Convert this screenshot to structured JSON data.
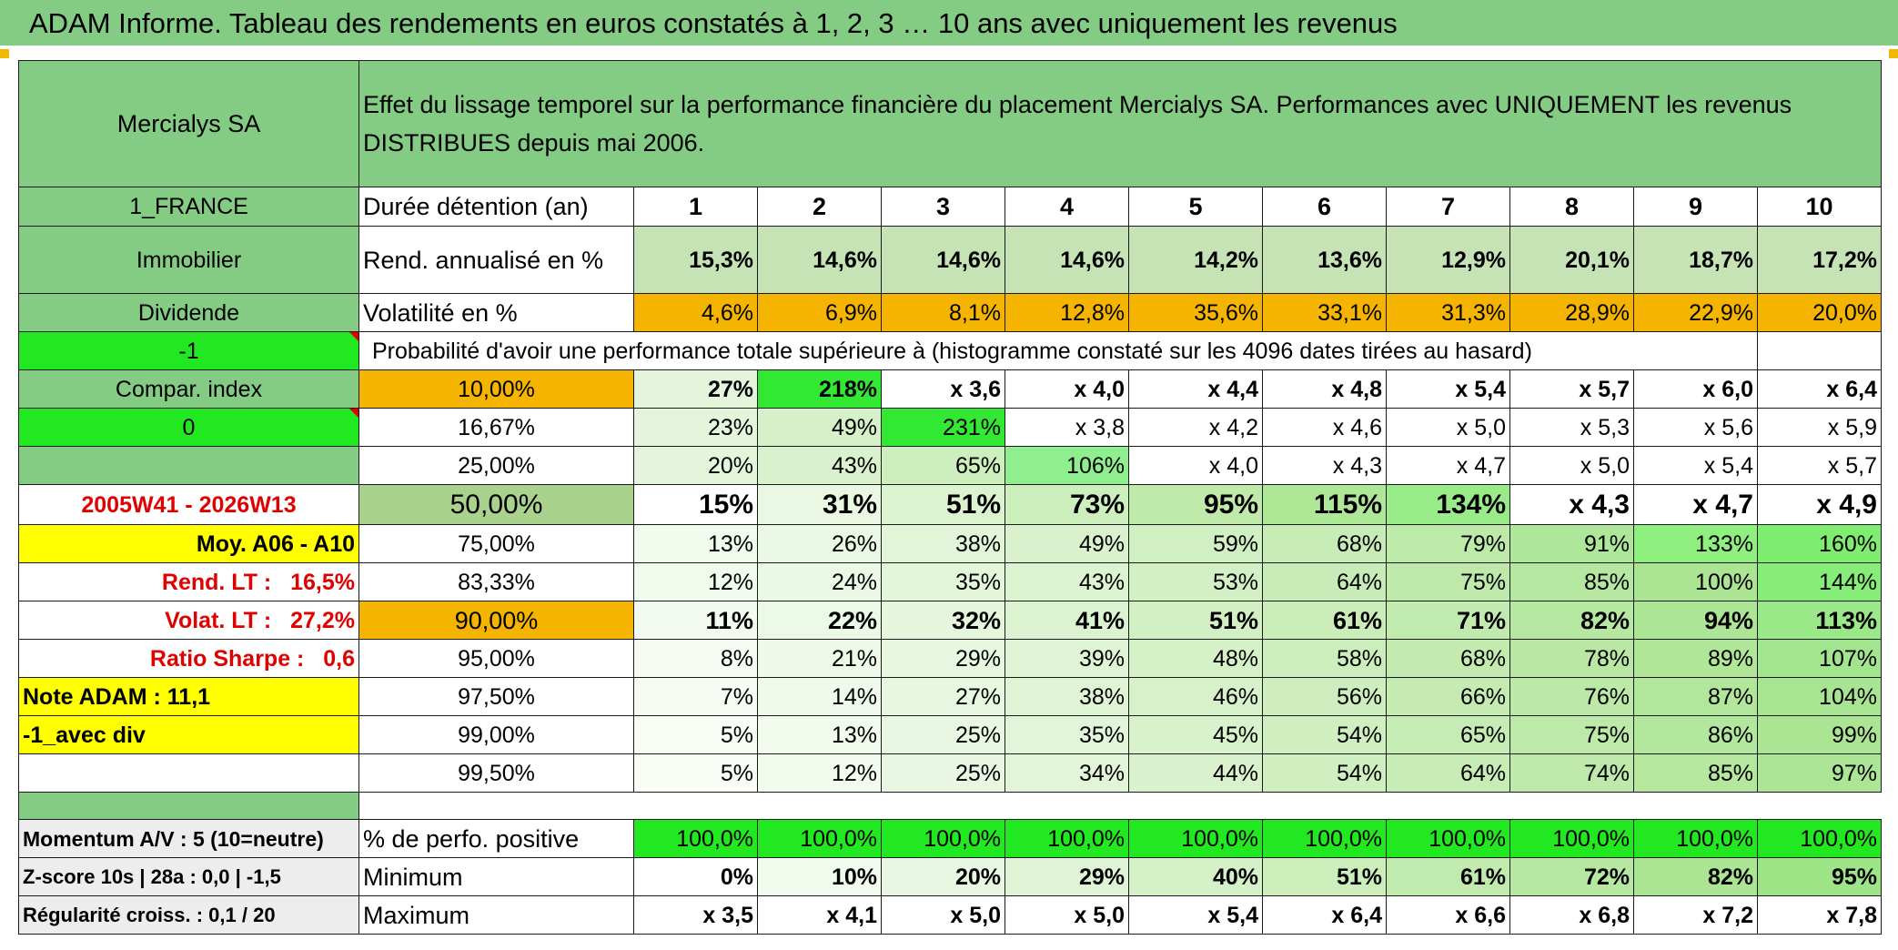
{
  "header": {
    "title": "ADAM Informe. Tableau des rendements en euros constatés à 1, 2, 3 … 10 ans avec uniquement les revenus"
  },
  "table": {
    "company": "Mercialys SA",
    "description": "Effet du lissage temporel sur la performance financière du placement Mercialys SA. Performances avec UNIQUEMENT les revenus DISTRIBUES depuis mai 2006.",
    "left_labels": {
      "country": "1_FRANCE",
      "sector": "Immobilier",
      "income_type": "Dividende",
      "flag_1": "-1",
      "compar_index": "Compar. index",
      "flag_2": "0",
      "period": "2005W41 - 2026W13",
      "avg": "Moy. A06 - A10",
      "rend_lt_label": "Rend. LT :",
      "rend_lt_value": "16,5%",
      "volat_lt_label": "Volat. LT :",
      "volat_lt_value": "27,2%",
      "sharpe_label": "Ratio Sharpe :",
      "sharpe_value": "0,6",
      "note_adam": "Note ADAM : 11,1",
      "avec_div": "-1_avec div",
      "momentum": "Momentum A/V : 5 (10=neutre)",
      "zscore": "Z-score 10s | 28a : 0,0 | -1,5",
      "regularite": "Régularité croiss. : 0,1 / 20"
    },
    "holding_label": "Durée détention (an)",
    "years": [
      "1",
      "2",
      "3",
      "4",
      "5",
      "6",
      "7",
      "8",
      "9",
      "10"
    ],
    "rend_label": "Rend. annualisé en %",
    "rend": [
      "15,3%",
      "14,6%",
      "14,6%",
      "14,6%",
      "14,2%",
      "13,6%",
      "12,9%",
      "20,1%",
      "18,7%",
      "17,2%"
    ],
    "vol_label": "Volatilité en %",
    "vol": [
      "4,6%",
      "6,9%",
      "8,1%",
      "12,8%",
      "35,6%",
      "33,1%",
      "31,3%",
      "28,9%",
      "22,9%",
      "20,0%"
    ],
    "prob_header": "Probabilité d'avoir une performance totale supérieure à (histogramme constaté sur les 4096 dates tirées au hasard)",
    "quantiles": [
      {
        "p": "10,00%",
        "v": [
          "27%",
          "218%",
          "x 3,6",
          "x 4,0",
          "x 4,4",
          "x 4,8",
          "x 5,4",
          "x 5,7",
          "x 6,0",
          "x 6,4"
        ]
      },
      {
        "p": "16,67%",
        "v": [
          "23%",
          "49%",
          "231%",
          "x 3,8",
          "x 4,2",
          "x 4,6",
          "x 5,0",
          "x 5,3",
          "x 5,6",
          "x 5,9"
        ]
      },
      {
        "p": "25,00%",
        "v": [
          "20%",
          "43%",
          "65%",
          "106%",
          "x 4,0",
          "x 4,3",
          "x 4,7",
          "x 5,0",
          "x 5,4",
          "x 5,7"
        ]
      },
      {
        "p": "50,00%",
        "v": [
          "15%",
          "31%",
          "51%",
          "73%",
          "95%",
          "115%",
          "134%",
          "x 4,3",
          "x 4,7",
          "x 4,9"
        ]
      },
      {
        "p": "75,00%",
        "v": [
          "13%",
          "26%",
          "38%",
          "49%",
          "59%",
          "68%",
          "79%",
          "91%",
          "133%",
          "160%"
        ]
      },
      {
        "p": "83,33%",
        "v": [
          "12%",
          "24%",
          "35%",
          "43%",
          "53%",
          "64%",
          "75%",
          "85%",
          "100%",
          "144%"
        ]
      },
      {
        "p": "90,00%",
        "v": [
          "11%",
          "22%",
          "32%",
          "41%",
          "51%",
          "61%",
          "71%",
          "82%",
          "94%",
          "113%"
        ]
      },
      {
        "p": "95,00%",
        "v": [
          "8%",
          "21%",
          "29%",
          "39%",
          "48%",
          "58%",
          "68%",
          "78%",
          "89%",
          "107%"
        ]
      },
      {
        "p": "97,50%",
        "v": [
          "7%",
          "14%",
          "27%",
          "38%",
          "46%",
          "56%",
          "66%",
          "76%",
          "87%",
          "104%"
        ]
      },
      {
        "p": "99,00%",
        "v": [
          "5%",
          "13%",
          "25%",
          "35%",
          "45%",
          "54%",
          "65%",
          "75%",
          "86%",
          "99%"
        ]
      },
      {
        "p": "99,50%",
        "v": [
          "5%",
          "12%",
          "25%",
          "34%",
          "44%",
          "54%",
          "64%",
          "74%",
          "85%",
          "97%"
        ]
      }
    ],
    "positive_label": "% de perfo. positive",
    "positive": [
      "100,0%",
      "100,0%",
      "100,0%",
      "100,0%",
      "100,0%",
      "100,0%",
      "100,0%",
      "100,0%",
      "100,0%",
      "100,0%"
    ],
    "min_label": "Minimum",
    "min": [
      "0%",
      "10%",
      "20%",
      "29%",
      "40%",
      "51%",
      "61%",
      "72%",
      "82%",
      "95%"
    ],
    "max_label": "Maximum",
    "max": [
      "x 3,5",
      "x 4,1",
      "x 5,0",
      "x 5,0",
      "x 5,4",
      "x 6,4",
      "x 6,6",
      "x 6,8",
      "x 7,2",
      "x 7,8"
    ]
  },
  "colors": {
    "header_green": "#84cc84",
    "light_green": "#c6e3b6",
    "orange": "#f5b400",
    "bright_green": "#21e821",
    "yellow": "#ffff00",
    "label_red": "#e00000"
  }
}
